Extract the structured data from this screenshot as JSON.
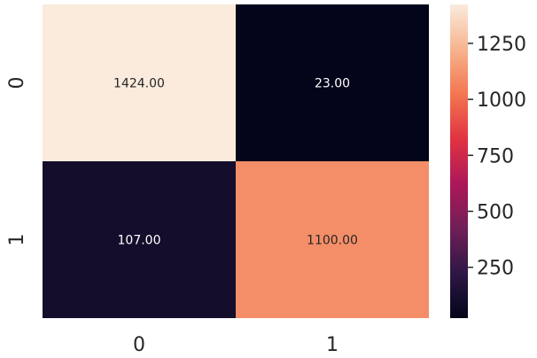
{
  "chart_data": {
    "type": "heatmap",
    "title": "",
    "xlabel": "",
    "ylabel": "",
    "x_tick_labels": [
      "0",
      "1"
    ],
    "y_tick_labels": [
      "0",
      "1"
    ],
    "cells": [
      [
        {
          "value": 1424,
          "label": "1424.00"
        },
        {
          "value": 23,
          "label": "23.00"
        }
      ],
      [
        {
          "value": 107,
          "label": "107.00"
        },
        {
          "value": 1100,
          "label": "1100.00"
        }
      ]
    ],
    "colorbar": {
      "range": [
        23,
        1424
      ],
      "tick_values": [
        250,
        500,
        750,
        1000,
        1250
      ],
      "tick_labels": [
        "250",
        "500",
        "750",
        "1000",
        "1250"
      ],
      "colormap": "rocket",
      "stops": [
        "#03051a",
        "#2e1745",
        "#701f57",
        "#ad1759",
        "#e13342",
        "#f37651",
        "#f6b48e",
        "#faebdd"
      ]
    }
  }
}
